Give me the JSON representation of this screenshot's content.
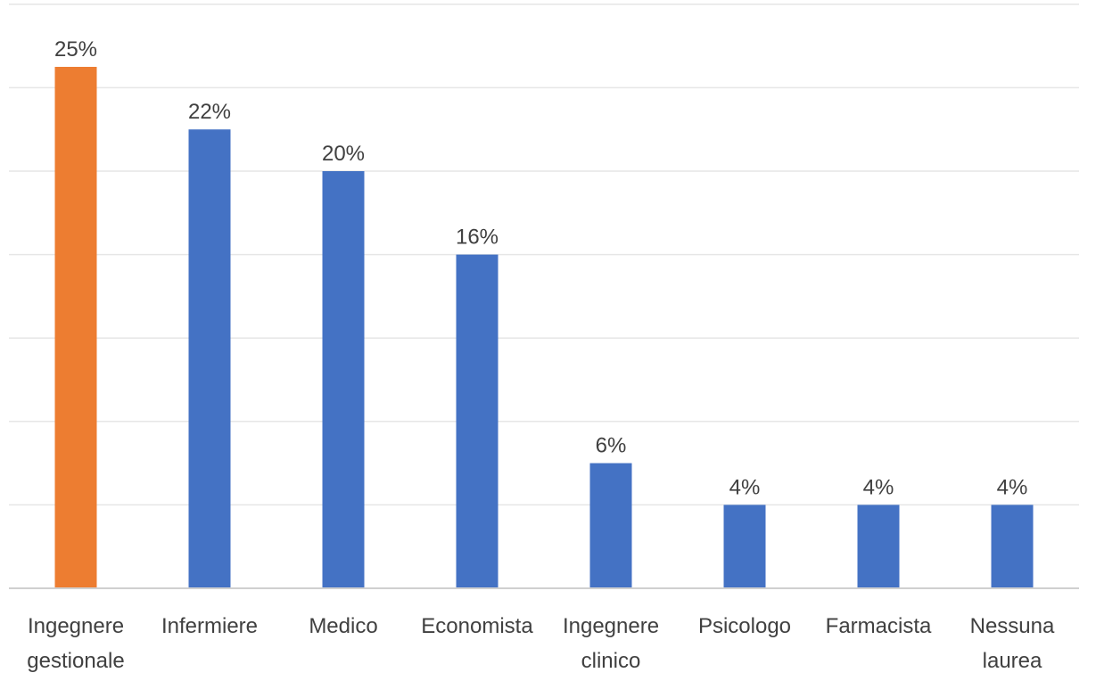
{
  "chart_data": {
    "type": "bar",
    "categories": [
      [
        "Ingegnere",
        "gestionale"
      ],
      [
        "Infermiere"
      ],
      [
        "Medico"
      ],
      [
        "Economista"
      ],
      [
        "Ingegnere",
        "clinico"
      ],
      [
        "Psicologo"
      ],
      [
        "Farmacista"
      ],
      [
        "Nessuna",
        "laurea"
      ]
    ],
    "values": [
      25,
      22,
      20,
      16,
      6,
      4,
      4,
      4
    ],
    "data_labels": [
      "25%",
      "22%",
      "20%",
      "16%",
      "6%",
      "4%",
      "4%",
      "4%"
    ],
    "colors": [
      "#ED7D31",
      "#4472C4",
      "#4472C4",
      "#4472C4",
      "#4472C4",
      "#4472C4",
      "#4472C4",
      "#4472C4"
    ],
    "ylim": [
      0,
      28
    ],
    "grid": true,
    "gridline_step": 4,
    "legend": "none"
  }
}
